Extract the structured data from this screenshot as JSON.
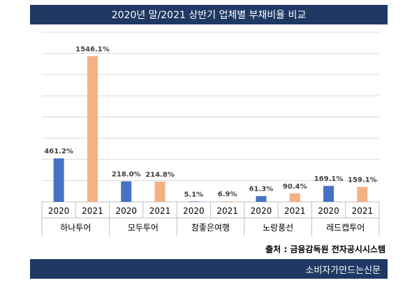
{
  "header": {
    "title": "2020년 말/2021 상반기 업체별 부채비율 비교"
  },
  "footer": {
    "source": "출처 : 금융감독원 전자공시시스템",
    "publisher": "소비자가만드는신문"
  },
  "colors": {
    "series_2020": "#4472c4",
    "series_2021": "#f4b183",
    "banner": "#1f3864"
  },
  "chart_data": {
    "type": "bar",
    "title": "2020년 말/2021 상반기 업체별 부채비율 비교",
    "categories": [
      "하나투어",
      "모두투어",
      "참좋은여행",
      "노랑풍선",
      "레드캡투어"
    ],
    "series": [
      {
        "name": "2020",
        "values": [
          461.2,
          218.0,
          5.1,
          61.3,
          169.1
        ],
        "labels": [
          "461.2%",
          "218.0%",
          "5.1%",
          "61.3%",
          "169.1%"
        ]
      },
      {
        "name": "2021",
        "values": [
          1546.1,
          214.8,
          6.9,
          90.4,
          159.1
        ],
        "labels": [
          "1546.1%",
          "214.8%",
          "6.9%",
          "90.4%",
          "159.1%"
        ]
      }
    ],
    "ylim": [
      0,
      1800
    ],
    "grid": true,
    "xlabel": "",
    "ylabel": ""
  }
}
